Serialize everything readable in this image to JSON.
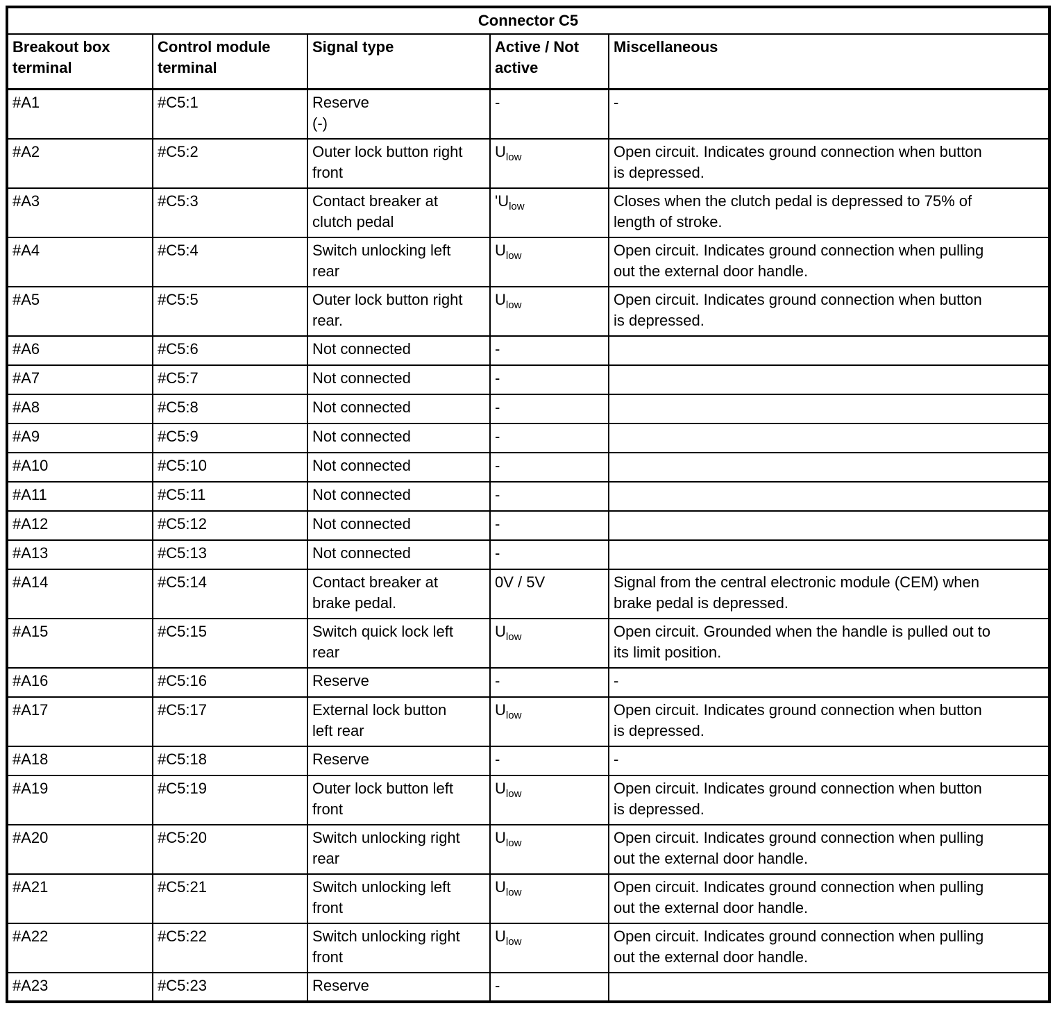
{
  "colors": {
    "background": "#ffffff",
    "text": "#000000",
    "border": "#000000"
  },
  "table": {
    "title": "Connector C5",
    "columns": [
      "Breakout box\nterminal",
      "Control module\nterminal",
      "Signal type",
      "Active / Not\nactive",
      "Miscellaneous"
    ],
    "rows": [
      {
        "breakout": "#A1",
        "module": "#C5:1",
        "signal": "Reserve\n(-)",
        "active": "-",
        "misc": "-"
      },
      {
        "breakout": "#A2",
        "module": "#C5:2",
        "signal": "Outer lock button right\nfront",
        "active": "U_low",
        "misc": "Open circuit. Indicates ground connection when button\nis depressed."
      },
      {
        "breakout": "#A3",
        "module": "#C5:3",
        "signal": "Contact breaker at\nclutch pedal",
        "active": "'U_low",
        "misc": "Closes when the clutch pedal is depressed to 75% of\nlength of stroke."
      },
      {
        "breakout": "#A4",
        "module": "#C5:4",
        "signal": "Switch unlocking left\nrear",
        "active": "U_low",
        "misc": "Open circuit. Indicates ground connection when pulling\nout the external door handle."
      },
      {
        "breakout": "#A5",
        "module": "#C5:5",
        "signal": "Outer lock button right\nrear.",
        "active": "U_low",
        "misc": "Open circuit. Indicates ground connection when button\nis depressed."
      },
      {
        "breakout": "#A6",
        "module": "#C5:6",
        "signal": "Not connected",
        "active": "-",
        "misc": ""
      },
      {
        "breakout": "#A7",
        "module": "#C5:7",
        "signal": "Not connected",
        "active": "-",
        "misc": ""
      },
      {
        "breakout": "#A8",
        "module": "#C5:8",
        "signal": "Not connected",
        "active": "-",
        "misc": ""
      },
      {
        "breakout": "#A9",
        "module": "#C5:9",
        "signal": "Not connected",
        "active": "-",
        "misc": ""
      },
      {
        "breakout": "#A10",
        "module": "#C5:10",
        "signal": "Not connected",
        "active": "-",
        "misc": ""
      },
      {
        "breakout": "#A11",
        "module": "#C5:11",
        "signal": "Not connected",
        "active": "-",
        "misc": ""
      },
      {
        "breakout": "#A12",
        "module": "#C5:12",
        "signal": "Not connected",
        "active": "-",
        "misc": ""
      },
      {
        "breakout": "#A13",
        "module": "#C5:13",
        "signal": "Not connected",
        "active": "-",
        "misc": ""
      },
      {
        "breakout": "#A14",
        "module": "#C5:14",
        "signal": "Contact breaker at\nbrake pedal.",
        "active": "0V / 5V",
        "misc": "Signal from the central electronic module (CEM) when\nbrake pedal is depressed."
      },
      {
        "breakout": "#A15",
        "module": "#C5:15",
        "signal": "Switch quick lock left\nrear",
        "active": "U_low",
        "misc": "Open circuit. Grounded when the handle is pulled out to\nits limit position."
      },
      {
        "breakout": "#A16",
        "module": "#C5:16",
        "signal": "Reserve",
        "active": "-",
        "misc": "-"
      },
      {
        "breakout": "#A17",
        "module": "#C5:17",
        "signal": "External lock button\nleft rear",
        "active": "U_low",
        "misc": "Open circuit. Indicates ground connection when button\nis depressed."
      },
      {
        "breakout": "#A18",
        "module": "#C5:18",
        "signal": "Reserve",
        "active": "-",
        "misc": "-"
      },
      {
        "breakout": "#A19",
        "module": "#C5:19",
        "signal": "Outer lock button left\nfront",
        "active": "U_low",
        "misc": "Open circuit. Indicates ground connection when button\nis depressed."
      },
      {
        "breakout": "#A20",
        "module": "#C5:20",
        "signal": "Switch unlocking right\nrear",
        "active": "U_low",
        "misc": "Open circuit. Indicates ground connection when pulling\nout the external door handle."
      },
      {
        "breakout": "#A21",
        "module": "#C5:21",
        "signal": "Switch unlocking left\nfront",
        "active": "U_low",
        "misc": "Open circuit. Indicates ground connection when pulling\nout the external door handle."
      },
      {
        "breakout": "#A22",
        "module": "#C5:22",
        "signal": "Switch unlocking right\nfront",
        "active": "U_low",
        "misc": "Open circuit. Indicates ground connection when pulling\nout the external door handle."
      },
      {
        "breakout": "#A23",
        "module": "#C5:23",
        "signal": "Reserve",
        "active": "-",
        "misc": ""
      }
    ]
  }
}
